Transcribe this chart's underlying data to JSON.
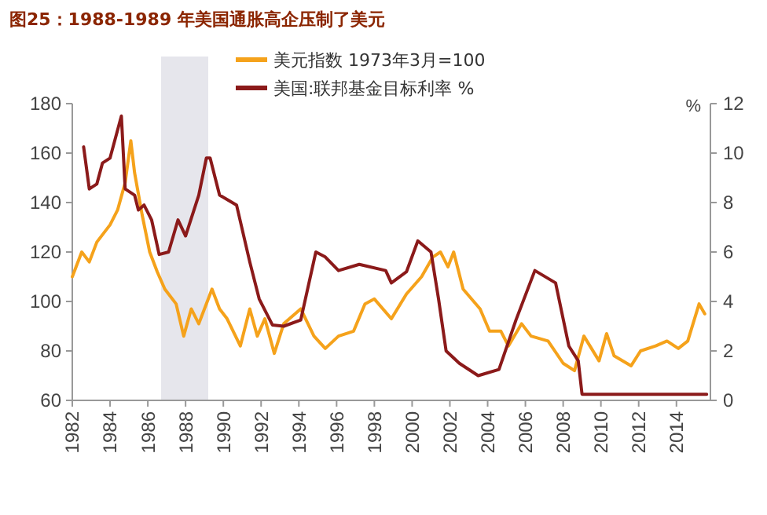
{
  "chart_data": {
    "type": "line",
    "title": "图25：1988-1989 年美国通胀高企压制了美元",
    "y2label": "%",
    "xlim": [
      1982,
      2015.8
    ],
    "xticks": [
      1982,
      1984,
      1986,
      1988,
      1990,
      1992,
      1994,
      1996,
      1998,
      2000,
      2002,
      2004,
      2006,
      2008,
      2010,
      2012,
      2014
    ],
    "ylim": [
      60,
      180
    ],
    "yticks": [
      60,
      80,
      100,
      120,
      140,
      160,
      180
    ],
    "y2lim": [
      0,
      12
    ],
    "y2ticks": [
      0,
      2,
      4,
      6,
      8,
      10,
      12
    ],
    "legend": "top",
    "grid": false,
    "bands": [
      {
        "axis": "x",
        "from": 1986.7,
        "to": 1989.2,
        "color": "#e6e6ec"
      }
    ],
    "series": [
      {
        "name": "美元指数 1973年3月=100",
        "color": "#f5a21b",
        "x": [
          1982.0,
          1982.5,
          1982.9,
          1983.3,
          1984.0,
          1984.4,
          1984.8,
          1985.1,
          1985.3,
          1985.7,
          1986.1,
          1986.5,
          1986.9,
          1987.5,
          1987.9,
          1988.3,
          1988.7,
          1989.4,
          1989.8,
          1990.2,
          1990.9,
          1991.4,
          1991.8,
          1992.2,
          1992.7,
          1993.2,
          1994.1,
          1994.8,
          1995.4,
          1996.1,
          1996.9,
          1997.5,
          1998.0,
          1998.9,
          1999.7,
          2000.5,
          2001.1,
          2001.5,
          2001.9,
          2002.2,
          2002.7,
          2003.6,
          2004.1,
          2004.7,
          2005.1,
          2005.8,
          2006.3,
          2007.2,
          2008.0,
          2008.6,
          2009.1,
          2009.9,
          2010.3,
          2010.7,
          2011.6,
          2012.1,
          2012.9,
          2013.5,
          2014.1,
          2014.6,
          2015.2,
          2015.5
        ],
        "values": [
          110,
          120,
          116,
          124,
          131,
          137,
          148,
          165,
          152,
          135,
          120,
          112,
          105,
          99,
          86,
          97,
          91,
          105,
          97,
          93,
          82,
          97,
          86,
          93,
          79,
          91,
          97,
          86,
          81,
          86,
          88,
          99,
          101,
          93,
          103,
          110,
          118,
          120,
          114,
          120,
          105,
          97,
          88,
          88,
          82,
          91,
          86,
          84,
          75,
          72,
          86,
          76,
          87,
          78,
          74,
          80,
          82,
          84,
          81,
          84,
          99,
          95
        ]
      },
      {
        "name": "美国:联邦基金目标利率 %",
        "color": "#8b1a1a",
        "axis": "y2",
        "x": [
          1982.6,
          1982.9,
          1983.3,
          1983.6,
          1984.0,
          1984.6,
          1984.8,
          1985.3,
          1985.5,
          1985.8,
          1986.2,
          1986.6,
          1987.1,
          1987.6,
          1988.0,
          1988.7,
          1989.1,
          1989.3,
          1989.8,
          1990.7,
          1991.4,
          1991.9,
          1992.6,
          1993.2,
          1994.1,
          1994.9,
          1995.4,
          1996.1,
          1997.2,
          1998.6,
          1998.9,
          1999.7,
          2000.3,
          2001.0,
          2001.4,
          2001.8,
          2002.5,
          2003.5,
          2004.6,
          2005.5,
          2006.5,
          2007.6,
          2008.3,
          2008.8,
          2009.0,
          2015.6
        ],
        "values": [
          10.25,
          8.55,
          8.75,
          9.6,
          9.8,
          11.5,
          8.55,
          8.3,
          7.7,
          7.9,
          7.3,
          5.9,
          6.0,
          7.3,
          6.65,
          8.3,
          9.8,
          9.8,
          8.3,
          7.9,
          5.6,
          4.1,
          3.05,
          3.0,
          3.25,
          6.0,
          5.8,
          5.25,
          5.5,
          5.25,
          4.75,
          5.2,
          6.45,
          6.0,
          4.1,
          2.0,
          1.5,
          1.0,
          1.25,
          3.25,
          5.25,
          4.75,
          2.2,
          1.6,
          0.25,
          0.25
        ]
      }
    ]
  }
}
